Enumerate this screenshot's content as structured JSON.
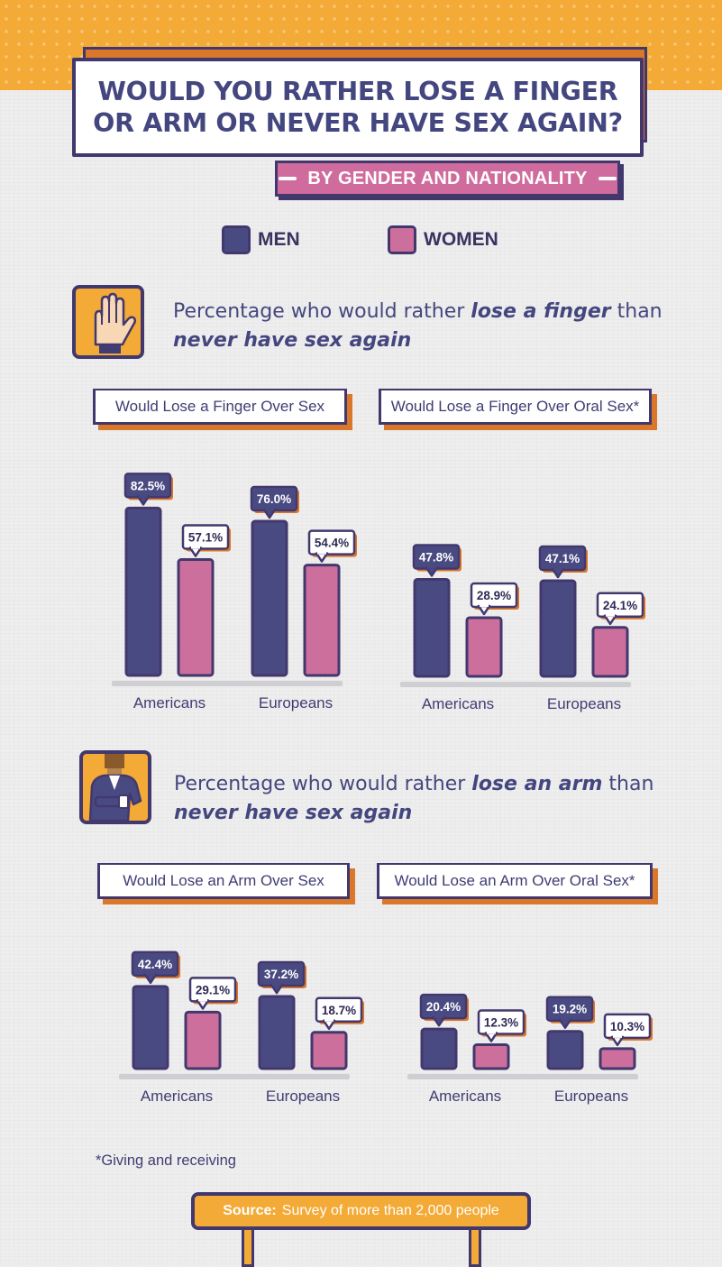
{
  "title": "WOULD YOU RATHER LOSE A FINGER OR ARM OR NEVER HAVE SEX AGAIN?",
  "subtitle": "BY GENDER AND NATIONALITY",
  "colors": {
    "men": "#4a4a82",
    "women": "#cc6f9c",
    "accent": "#f3aa36",
    "outline": "#43386e"
  },
  "legend": [
    {
      "label": "MEN"
    },
    {
      "label": "WOMEN"
    }
  ],
  "sections": [
    {
      "icon": "raised-hand-icon",
      "heading": {
        "pre": "Percentage who would rather ",
        "em1": "lose a finger",
        "mid": " than",
        "em2": "never have sex again"
      }
    },
    {
      "icon": "one-armed-person-icon",
      "heading": {
        "pre": "Percentage who would rather ",
        "em1": "lose an arm",
        "mid": " than",
        "em2": "never have sex again"
      }
    }
  ],
  "chart_data": [
    {
      "type": "bar",
      "title": "Would Lose a Finger Over Sex",
      "categories": [
        "Americans",
        "Europeans"
      ],
      "series": [
        {
          "name": "MEN",
          "values": [
            82.5,
            76.0
          ],
          "labels": [
            "82.5%",
            "76.0%"
          ]
        },
        {
          "name": "WOMEN",
          "values": [
            57.1,
            54.4
          ],
          "labels": [
            "57.1%",
            "54.4%"
          ]
        }
      ]
    },
    {
      "type": "bar",
      "title": "Would Lose a Finger Over Oral Sex*",
      "categories": [
        "Americans",
        "Europeans"
      ],
      "series": [
        {
          "name": "MEN",
          "values": [
            47.8,
            47.1
          ],
          "labels": [
            "47.8%",
            "47.1%"
          ]
        },
        {
          "name": "WOMEN",
          "values": [
            28.9,
            24.1
          ],
          "labels": [
            "28.9%",
            "24.1%"
          ]
        }
      ]
    },
    {
      "type": "bar",
      "title": "Would Lose an Arm Over Sex",
      "categories": [
        "Americans",
        "Europeans"
      ],
      "series": [
        {
          "name": "MEN",
          "values": [
            42.4,
            37.2
          ],
          "labels": [
            "42.4%",
            "37.2%"
          ]
        },
        {
          "name": "WOMEN",
          "values": [
            29.1,
            18.7
          ],
          "labels": [
            "29.1%",
            "18.7%"
          ]
        }
      ]
    },
    {
      "type": "bar",
      "title": "Would Lose an Arm Over Oral Sex*",
      "categories": [
        "Americans",
        "Europeans"
      ],
      "series": [
        {
          "name": "MEN",
          "values": [
            20.4,
            19.2
          ],
          "labels": [
            "20.4%",
            "19.2%"
          ]
        },
        {
          "name": "WOMEN",
          "values": [
            12.3,
            10.3
          ],
          "labels": [
            "12.3%",
            "10.3%"
          ]
        }
      ]
    }
  ],
  "footnote": "*Giving and receiving",
  "source": {
    "label": "Source:",
    "text": "Survey of more than 2,000 people"
  }
}
